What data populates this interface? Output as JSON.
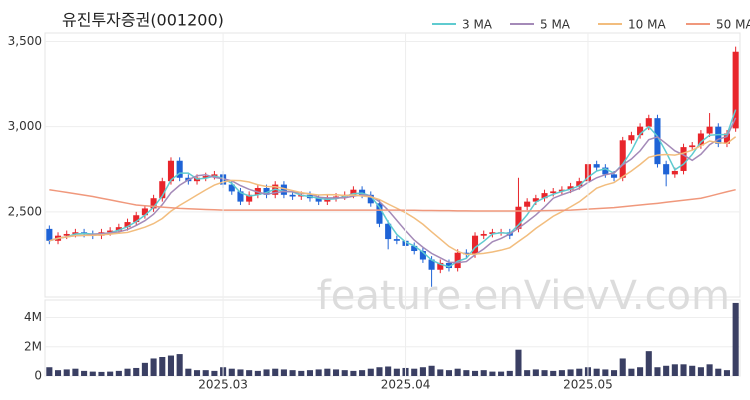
{
  "watermark": "feature.enVievV.com",
  "chart_data": [
    {
      "type": "candlestick",
      "title": "유진투자증권(001200)",
      "up_color": "#e8252b",
      "down_color": "#1e63d6",
      "grid": true,
      "ylim": [
        2000,
        3550
      ],
      "yticks": [
        {
          "value": 2500,
          "label": "2,500"
        },
        {
          "value": 3000,
          "label": "3,000"
        },
        {
          "value": 3500,
          "label": "3,500"
        }
      ],
      "open": [
        2400,
        2330,
        2360,
        2370,
        2380,
        2370,
        2360,
        2380,
        2390,
        2410,
        2440,
        2480,
        2520,
        2580,
        2680,
        2800,
        2700,
        2680,
        2700,
        2710,
        2720,
        2660,
        2620,
        2560,
        2600,
        2640,
        2600,
        2660,
        2600,
        2590,
        2600,
        2580,
        2560,
        2580,
        2590,
        2600,
        2630,
        2600,
        2550,
        2430,
        2340,
        2330,
        2300,
        2270,
        2220,
        2160,
        2200,
        2170,
        2260,
        2250,
        2360,
        2370,
        2380,
        2380,
        2400,
        2530,
        2560,
        2580,
        2610,
        2620,
        2630,
        2650,
        2680,
        2780,
        2760,
        2720,
        2700,
        2920,
        2950,
        3000,
        3050,
        2780,
        2720,
        2740,
        2880,
        2890,
        2960,
        3000,
        2900,
        2990
      ],
      "high": [
        2420,
        2380,
        2390,
        2400,
        2400,
        2390,
        2400,
        2410,
        2430,
        2460,
        2500,
        2540,
        2600,
        2700,
        2820,
        2820,
        2720,
        2720,
        2730,
        2740,
        2740,
        2680,
        2640,
        2620,
        2660,
        2660,
        2680,
        2680,
        2620,
        2620,
        2620,
        2600,
        2600,
        2610,
        2620,
        2650,
        2650,
        2620,
        2570,
        2450,
        2360,
        2350,
        2320,
        2290,
        2240,
        2220,
        2220,
        2280,
        2280,
        2380,
        2390,
        2400,
        2400,
        2400,
        2700,
        2580,
        2600,
        2630,
        2640,
        2650,
        2670,
        2700,
        2800,
        2800,
        2780,
        2740,
        2940,
        2970,
        3020,
        3070,
        3070,
        2800,
        2760,
        2900,
        2910,
        2980,
        3080,
        3020,
        2980,
        3470
      ],
      "low": [
        2310,
        2310,
        2340,
        2350,
        2350,
        2340,
        2340,
        2360,
        2370,
        2390,
        2420,
        2460,
        2500,
        2560,
        2660,
        2680,
        2660,
        2660,
        2680,
        2690,
        2640,
        2600,
        2540,
        2540,
        2580,
        2580,
        2580,
        2580,
        2570,
        2570,
        2560,
        2540,
        2540,
        2560,
        2570,
        2580,
        2580,
        2530,
        2410,
        2280,
        2310,
        2280,
        2250,
        2200,
        2060,
        2140,
        2150,
        2150,
        2230,
        2230,
        2340,
        2350,
        2360,
        2340,
        2380,
        2510,
        2540,
        2560,
        2590,
        2600,
        2610,
        2630,
        2660,
        2740,
        2700,
        2680,
        2680,
        2900,
        2930,
        2980,
        2760,
        2650,
        2700,
        2720,
        2860,
        2870,
        2940,
        2880,
        2880,
        2970
      ],
      "close": [
        2330,
        2360,
        2370,
        2380,
        2370,
        2360,
        2380,
        2390,
        2410,
        2440,
        2480,
        2520,
        2580,
        2680,
        2800,
        2700,
        2680,
        2700,
        2710,
        2720,
        2660,
        2620,
        2560,
        2600,
        2640,
        2600,
        2660,
        2600,
        2590,
        2600,
        2580,
        2560,
        2580,
        2590,
        2600,
        2630,
        2600,
        2550,
        2430,
        2340,
        2330,
        2300,
        2270,
        2220,
        2160,
        2200,
        2170,
        2260,
        2250,
        2360,
        2370,
        2380,
        2380,
        2360,
        2530,
        2560,
        2580,
        2610,
        2620,
        2630,
        2650,
        2680,
        2780,
        2760,
        2720,
        2700,
        2920,
        2950,
        3000,
        3050,
        2780,
        2720,
        2740,
        2880,
        2890,
        2960,
        3000,
        2900,
        2960,
        3440
      ],
      "legend": "top-right",
      "series": [
        {
          "name": "3 MA",
          "color": "#5fcbd0",
          "values": [
            2330,
            2345,
            2353,
            2370,
            2373,
            2370,
            2370,
            2377,
            2393,
            2413,
            2443,
            2480,
            2527,
            2593,
            2687,
            2727,
            2727,
            2693,
            2697,
            2710,
            2697,
            2667,
            2613,
            2593,
            2600,
            2613,
            2633,
            2620,
            2617,
            2597,
            2590,
            2580,
            2573,
            2577,
            2590,
            2607,
            2610,
            2593,
            2527,
            2440,
            2367,
            2323,
            2300,
            2263,
            2217,
            2193,
            2177,
            2210,
            2227,
            2290,
            2327,
            2370,
            2377,
            2373,
            2423,
            2483,
            2557,
            2583,
            2603,
            2620,
            2633,
            2653,
            2703,
            2740,
            2753,
            2727,
            2780,
            2857,
            2957,
            3000,
            2943,
            2850,
            2747,
            2780,
            2837,
            2910,
            2950,
            2953,
            2953,
            3100
          ]
        },
        {
          "name": "5 MA",
          "color": "#a48ab8",
          "values": [
            2330,
            2345,
            2353,
            2360,
            2362,
            2368,
            2372,
            2376,
            2382,
            2396,
            2420,
            2448,
            2486,
            2542,
            2612,
            2656,
            2688,
            2712,
            2718,
            2702,
            2694,
            2682,
            2654,
            2632,
            2616,
            2604,
            2612,
            2620,
            2618,
            2610,
            2606,
            2586,
            2582,
            2582,
            2582,
            2592,
            2600,
            2594,
            2560,
            2510,
            2450,
            2390,
            2334,
            2292,
            2256,
            2230,
            2204,
            2202,
            2208,
            2248,
            2282,
            2324,
            2344,
            2370,
            2404,
            2442,
            2482,
            2528,
            2580,
            2600,
            2618,
            2638,
            2672,
            2700,
            2718,
            2728,
            2776,
            2810,
            2858,
            2924,
            2940,
            2900,
            2858,
            2834,
            2802,
            2838,
            2894,
            2926,
            2942,
            3052
          ]
        },
        {
          "name": "10 MA",
          "color": "#f2bd7e",
          "values": [
            2330,
            2345,
            2353,
            2360,
            2362,
            2362,
            2365,
            2369,
            2374,
            2379,
            2394,
            2410,
            2431,
            2461,
            2504,
            2538,
            2568,
            2599,
            2629,
            2657,
            2675,
            2685,
            2683,
            2675,
            2659,
            2649,
            2647,
            2637,
            2625,
            2613,
            2605,
            2599,
            2601,
            2600,
            2596,
            2599,
            2593,
            2588,
            2572,
            2546,
            2521,
            2495,
            2464,
            2427,
            2383,
            2340,
            2297,
            2268,
            2250,
            2252,
            2256,
            2264,
            2275,
            2289,
            2326,
            2362,
            2403,
            2438,
            2474,
            2501,
            2529,
            2559,
            2599,
            2639,
            2658,
            2672,
            2706,
            2740,
            2778,
            2820,
            2833,
            2837,
            2833,
            2845,
            2862,
            2888,
            2916,
            2906,
            2902,
            2941
          ]
        },
        {
          "name": "50 MA",
          "color": "#f0987c",
          "values": [
            2630,
            2622,
            2614,
            2606,
            2598,
            2590,
            2580,
            2570,
            2560,
            2550,
            2540,
            2536,
            2532,
            2528,
            2524,
            2520,
            2518,
            2516,
            2514,
            2512,
            2510,
            2510,
            2510,
            2510,
            2510,
            2510,
            2510,
            2510,
            2510,
            2510,
            2510,
            2510,
            2510,
            2510,
            2510,
            2510,
            2510,
            2510,
            2510,
            2510,
            2510,
            2509,
            2509,
            2508,
            2508,
            2507,
            2507,
            2506,
            2506,
            2505,
            2505,
            2505,
            2505,
            2505,
            2505,
            2505,
            2506,
            2507,
            2508,
            2509,
            2510,
            2513,
            2516,
            2519,
            2522,
            2525,
            2530,
            2535,
            2540,
            2545,
            2550,
            2556,
            2562,
            2568,
            2574,
            2580,
            2592,
            2605,
            2618,
            2630
          ]
        }
      ]
    },
    {
      "type": "bar",
      "color": "#3a3f63",
      "ylim": [
        0,
        5200000
      ],
      "yticks": [
        0,
        {
          "value": 2000000,
          "label": "2M"
        },
        {
          "value": 4000000,
          "label": "4M"
        }
      ],
      "categories": [
        null,
        null,
        null,
        null,
        null,
        null,
        null,
        null,
        null,
        null,
        null,
        null,
        null,
        null,
        null,
        null,
        null,
        null,
        null,
        null,
        "2025.03",
        null,
        null,
        null,
        null,
        null,
        null,
        null,
        null,
        null,
        null,
        null,
        null,
        null,
        null,
        null,
        null,
        null,
        null,
        null,
        null,
        "2025.04",
        null,
        null,
        null,
        null,
        null,
        null,
        null,
        null,
        null,
        null,
        null,
        null,
        null,
        null,
        null,
        null,
        null,
        null,
        null,
        null,
        "2025.05",
        null,
        null,
        null,
        null,
        null,
        null,
        null,
        null,
        null,
        null,
        null,
        null,
        null,
        null,
        null,
        null,
        null
      ],
      "values": [
        600000,
        400000,
        450000,
        500000,
        350000,
        300000,
        280000,
        300000,
        350000,
        500000,
        550000,
        900000,
        1200000,
        1300000,
        1400000,
        1500000,
        500000,
        400000,
        400000,
        350000,
        600000,
        500000,
        450000,
        400000,
        350000,
        450000,
        500000,
        450000,
        400000,
        350000,
        400000,
        450000,
        500000,
        450000,
        400000,
        350000,
        400000,
        500000,
        600000,
        650000,
        500000,
        550000,
        500000,
        600000,
        700000,
        450000,
        400000,
        500000,
        400000,
        350000,
        400000,
        300000,
        300000,
        350000,
        1800000,
        400000,
        450000,
        400000,
        350000,
        400000,
        450000,
        500000,
        600000,
        500000,
        450000,
        400000,
        1200000,
        500000,
        600000,
        1700000,
        600000,
        700000,
        800000,
        800000,
        700000,
        600000,
        800000,
        500000,
        400000,
        5000000
      ]
    }
  ]
}
